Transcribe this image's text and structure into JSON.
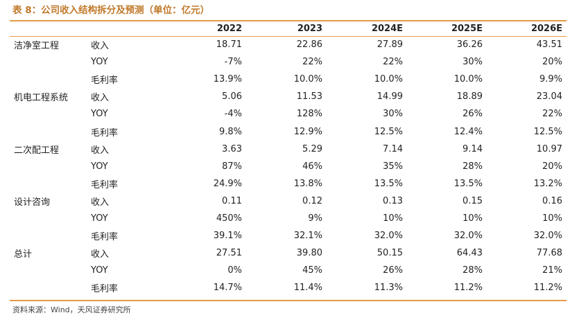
{
  "title": "表 8：公司收入结构拆分及预测（单位：亿元）",
  "columns": [
    "2022",
    "2023",
    "2024E",
    "2025E",
    "2026E"
  ],
  "rows": [
    {
      "segment": "洁净室工程",
      "metric": "收入",
      "values": [
        "18.71",
        "22.86",
        "27.89",
        "36.26",
        "43.51"
      ]
    },
    {
      "segment": "",
      "metric": "YOY",
      "values": [
        "-7%",
        "22%",
        "22%",
        "30%",
        "20%"
      ]
    },
    {
      "segment": "",
      "metric": "毛利率",
      "values": [
        "13.9%",
        "10.0%",
        "10.0%",
        "10.0%",
        "9.9%"
      ]
    },
    {
      "segment": "机电工程系统",
      "metric": "收入",
      "values": [
        "5.06",
        "11.53",
        "14.99",
        "18.89",
        "23.04"
      ]
    },
    {
      "segment": "",
      "metric": "YOY",
      "values": [
        "-4%",
        "128%",
        "30%",
        "26%",
        "22%"
      ]
    },
    {
      "segment": "",
      "metric": "毛利率",
      "values": [
        "9.8%",
        "12.9%",
        "12.5%",
        "12.4%",
        "12.5%"
      ]
    },
    {
      "segment": "二次配工程",
      "metric": "收入",
      "values": [
        "3.63",
        "5.29",
        "7.14",
        "9.14",
        "10.97"
      ]
    },
    {
      "segment": "",
      "metric": "YOY",
      "values": [
        "87%",
        "46%",
        "35%",
        "28%",
        "20%"
      ]
    },
    {
      "segment": "",
      "metric": "毛利率",
      "values": [
        "24.9%",
        "13.8%",
        "13.5%",
        "13.5%",
        "13.2%"
      ]
    },
    {
      "segment": "设计咨询",
      "metric": "收入",
      "values": [
        "0.11",
        "0.12",
        "0.13",
        "0.15",
        "0.16"
      ]
    },
    {
      "segment": "",
      "metric": "YOY",
      "values": [
        "450%",
        "9%",
        "10%",
        "10%",
        "10%"
      ]
    },
    {
      "segment": "",
      "metric": "毛利率",
      "values": [
        "39.1%",
        "32.1%",
        "32.0%",
        "32.0%",
        "32.0%"
      ]
    },
    {
      "segment": "总计",
      "metric": "收入",
      "values": [
        "27.51",
        "39.80",
        "50.15",
        "64.43",
        "77.68"
      ]
    },
    {
      "segment": "",
      "metric": "YOY",
      "values": [
        "0%",
        "45%",
        "26%",
        "28%",
        "21%"
      ]
    },
    {
      "segment": "",
      "metric": "毛利率",
      "values": [
        "14.7%",
        "11.4%",
        "11.3%",
        "11.2%",
        "11.2%"
      ]
    }
  ],
  "source": "资料来源：Wind，天风证券研究所",
  "colors": {
    "accent": "#e39a45",
    "title": "#c0792a"
  }
}
